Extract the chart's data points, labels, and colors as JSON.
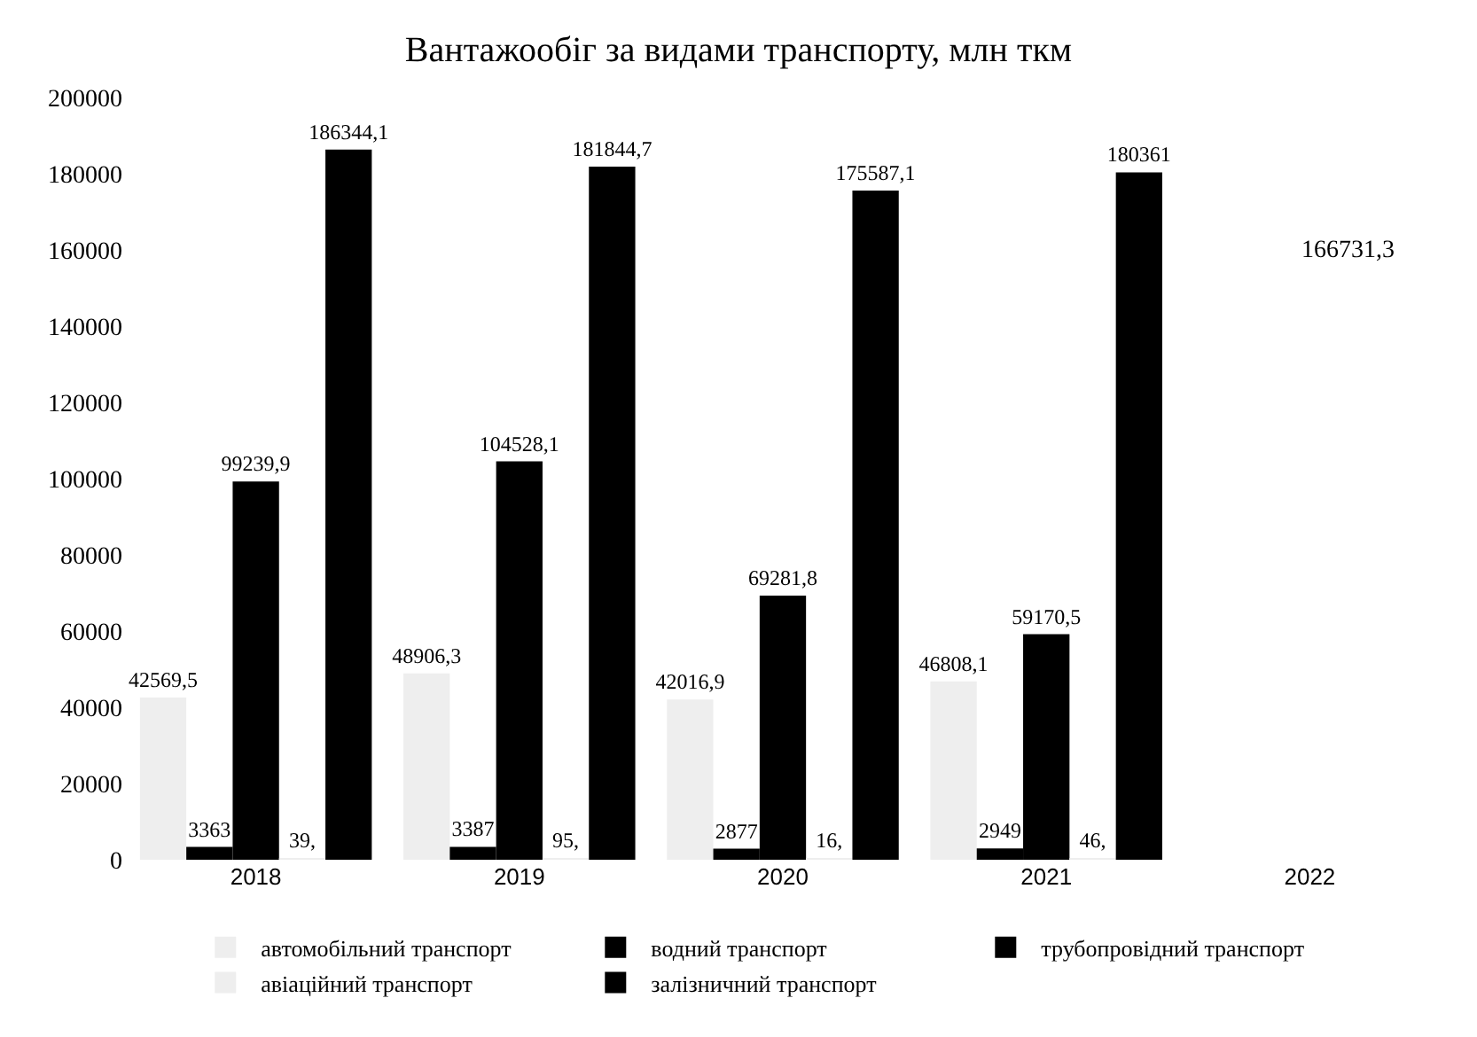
{
  "chart_data": {
    "type": "bar",
    "title": "Вантажообіг за видами транспорту, млн ткм",
    "categories": [
      "2018",
      "2019",
      "2020",
      "2021",
      "2022"
    ],
    "series": [
      {
        "name": "автомобільний транспорт",
        "color": "#eeeeee",
        "values": [
          42569.5,
          48906.3,
          42016.9,
          46808.1,
          null
        ],
        "value_labels": [
          "42569,5",
          "48906,3",
          "42016,9",
          "46808,1",
          null
        ]
      },
      {
        "name": "водний транспорт",
        "color": "#000000",
        "values": [
          3363,
          3387,
          2877,
          2949,
          null
        ],
        "value_labels": [
          "3363",
          "3387",
          "2877",
          "2949",
          null
        ]
      },
      {
        "name": "трубопровідний транспорт",
        "color": "#000000",
        "values": [
          99239.9,
          104528.1,
          69281.8,
          59170.5,
          null
        ],
        "value_labels": [
          "99239,9",
          "104528,1",
          "69281,8",
          "59170,5",
          null
        ]
      },
      {
        "name": "авіаційний транспорт",
        "color": "#eeeeee",
        "values": [
          39,
          95,
          16,
          46,
          null
        ],
        "value_labels": [
          "39,",
          "95,",
          "16,",
          "46,",
          null
        ]
      },
      {
        "name": "залізничний транспорт",
        "color": "#000000",
        "values": [
          186344.1,
          181844.7,
          175587.1,
          180361,
          null
        ],
        "value_labels": [
          "186344,1",
          "181844,7",
          "175587,1",
          "180361",
          null
        ]
      }
    ],
    "annotations": [
      "166731,3"
    ],
    "ylim": [
      0,
      200000
    ],
    "yticks": [
      0,
      20000,
      40000,
      60000,
      80000,
      100000,
      120000,
      140000,
      160000,
      180000,
      200000
    ],
    "grid": false,
    "legend": "bottom"
  }
}
